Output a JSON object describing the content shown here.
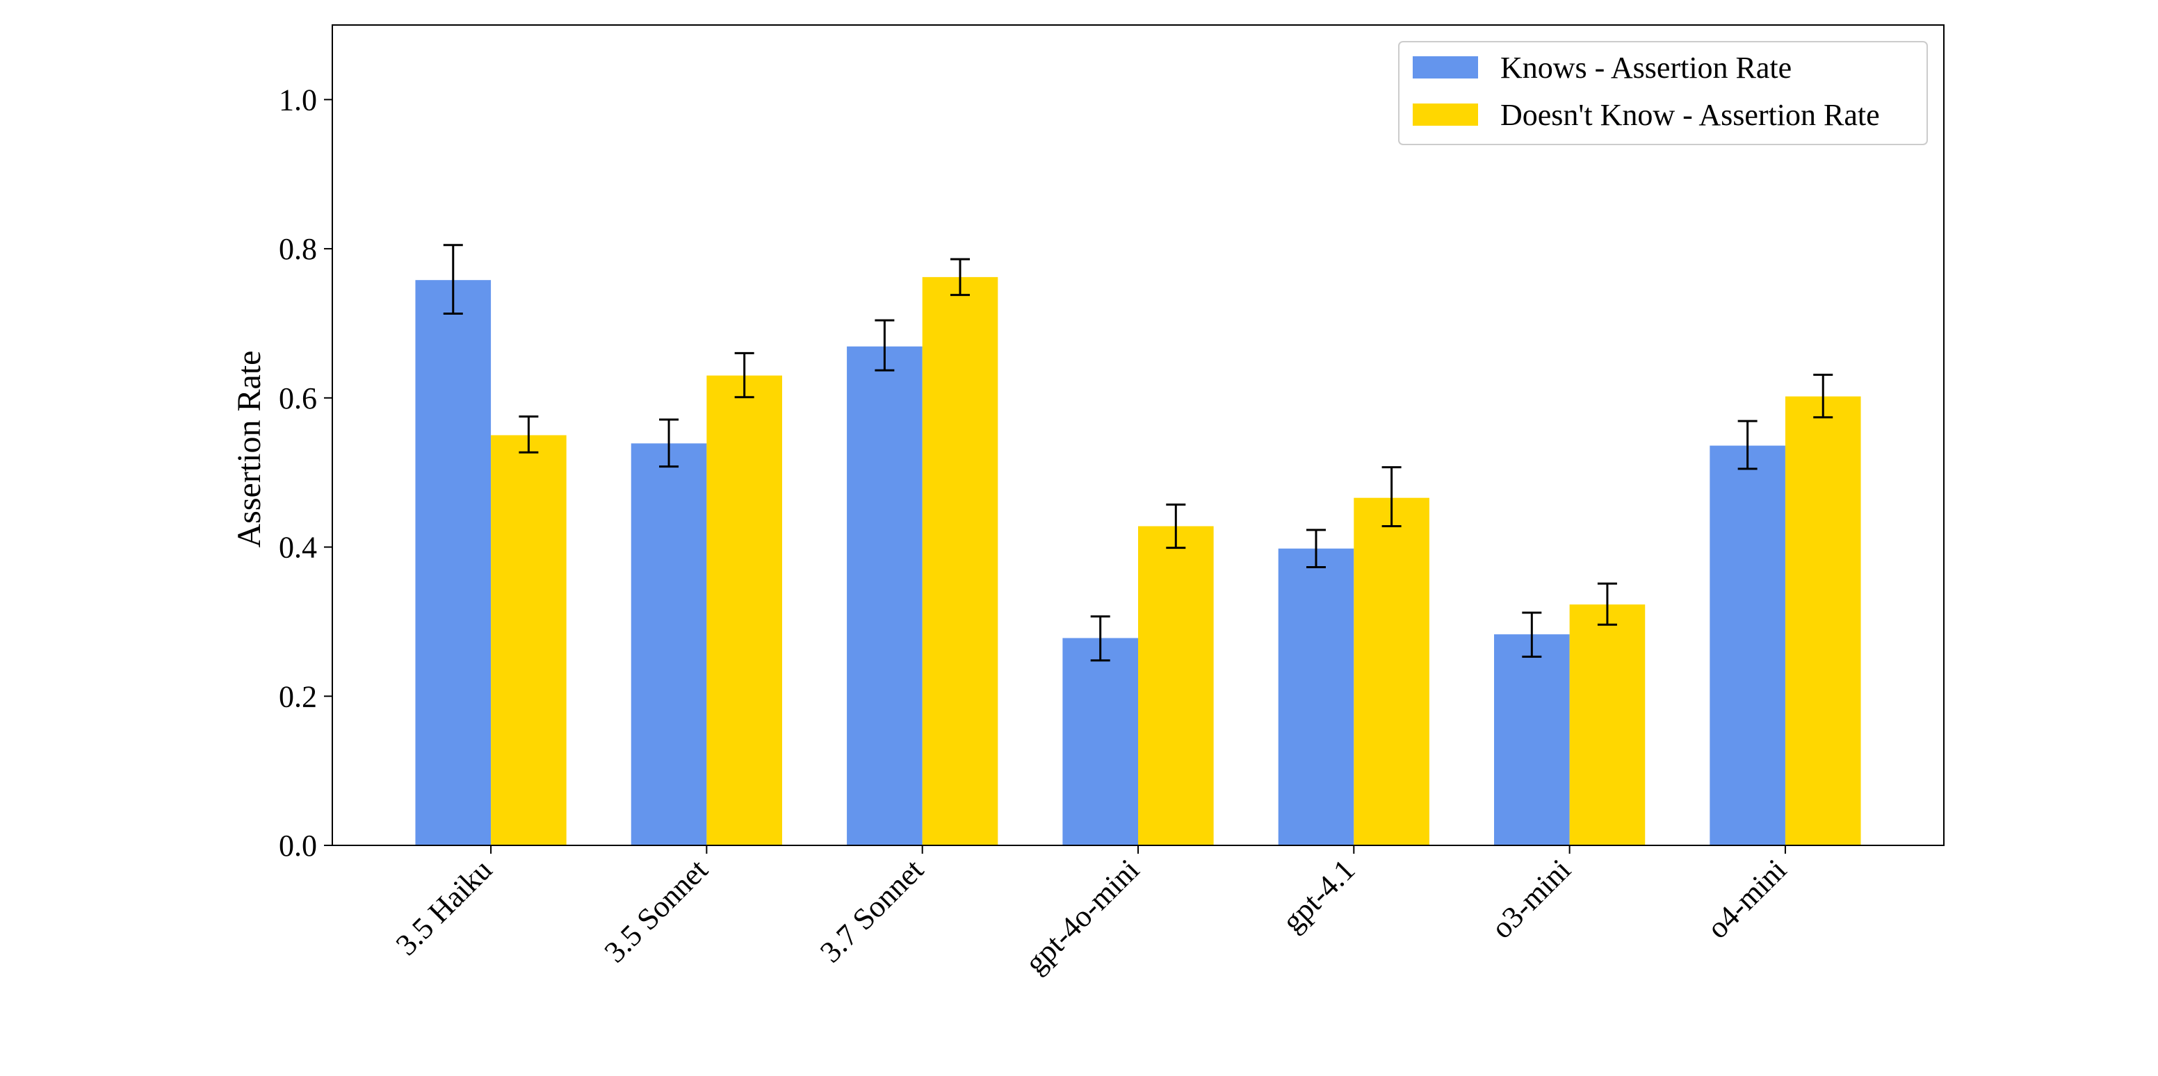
{
  "chart_data": {
    "type": "bar",
    "title": "",
    "xlabel": "",
    "ylabel": "Assertion Rate",
    "ylim": [
      0,
      1.1
    ],
    "yticks": [
      0.0,
      0.2,
      0.4,
      0.6,
      0.8,
      1.0
    ],
    "ytick_labels": [
      "0.0",
      "0.2",
      "0.4",
      "0.6",
      "0.8",
      "1.0"
    ],
    "grid": false,
    "legend_position": "top-right",
    "categories": [
      "3.5 Haiku",
      "3.5 Sonnet",
      "3.7 Sonnet",
      "gpt-4o-mini",
      "gpt-4.1",
      "o3-mini",
      "o4-mini"
    ],
    "series": [
      {
        "name": "Knows - Assertion Rate",
        "color": "#6495ED",
        "values": [
          0.758,
          0.539,
          0.669,
          0.278,
          0.398,
          0.283,
          0.536
        ],
        "err_low": [
          0.713,
          0.508,
          0.637,
          0.248,
          0.373,
          0.253,
          0.505
        ],
        "err_high": [
          0.805,
          0.571,
          0.704,
          0.307,
          0.423,
          0.312,
          0.569
        ]
      },
      {
        "name": "Doesn't Know - Assertion Rate",
        "color": "#FFD700",
        "values": [
          0.55,
          0.63,
          0.762,
          0.428,
          0.466,
          0.323,
          0.602
        ],
        "err_low": [
          0.527,
          0.601,
          0.738,
          0.399,
          0.428,
          0.296,
          0.574
        ],
        "err_high": [
          0.575,
          0.66,
          0.786,
          0.457,
          0.507,
          0.351,
          0.631
        ]
      }
    ]
  }
}
